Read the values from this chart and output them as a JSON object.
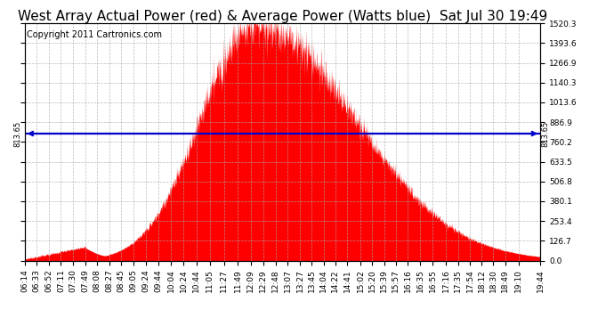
{
  "title": "West Array Actual Power (red) & Average Power (Watts blue)  Sat Jul 30 19:49",
  "copyright": "Copyright 2011 Cartronics.com",
  "average_power": 813.65,
  "ymax": 1520.3,
  "yticks": [
    0.0,
    126.7,
    253.4,
    380.1,
    506.8,
    633.5,
    760.2,
    886.9,
    1013.6,
    1140.3,
    1266.9,
    1393.6,
    1520.3
  ],
  "fill_color": "#FF0000",
  "line_color": "#0000CC",
  "background_color": "#FFFFFF",
  "grid_color": "#AAAAAA",
  "title_fontsize": 11,
  "copyright_fontsize": 7,
  "tick_fontsize": 6.5,
  "xtick_labels": [
    "06:14",
    "06:33",
    "06:52",
    "07:11",
    "07:30",
    "07:49",
    "08:08",
    "08:27",
    "08:45",
    "09:05",
    "09:24",
    "09:44",
    "10:04",
    "10:24",
    "10:44",
    "11:05",
    "11:27",
    "11:49",
    "12:09",
    "12:29",
    "12:48",
    "13:07",
    "13:27",
    "13:45",
    "14:04",
    "14:22",
    "14:41",
    "15:02",
    "15:20",
    "15:39",
    "15:57",
    "16:16",
    "16:35",
    "16:55",
    "17:16",
    "17:35",
    "17:54",
    "18:12",
    "18:30",
    "18:49",
    "19:10",
    "19:44"
  ]
}
